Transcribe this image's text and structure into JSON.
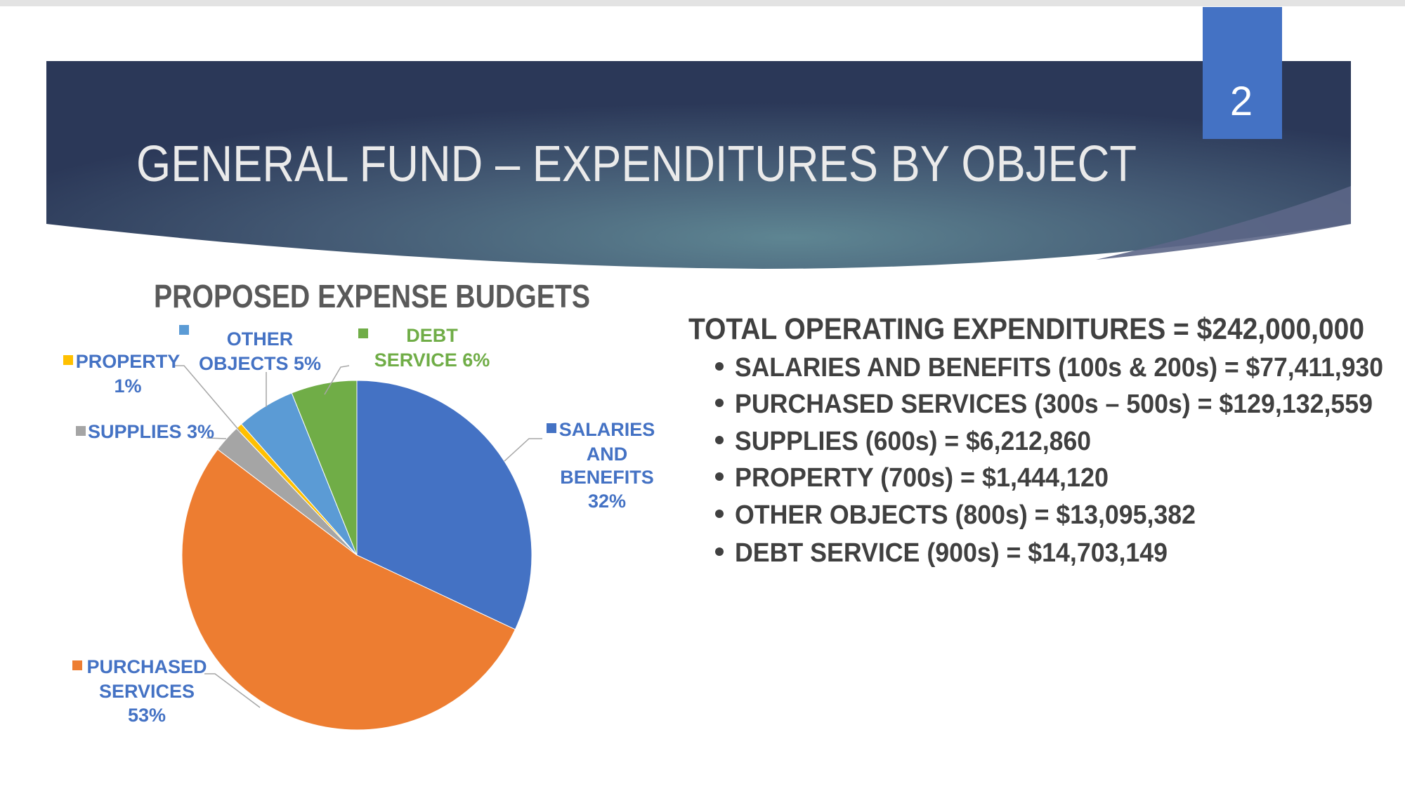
{
  "slide": {
    "title": "GENERAL FUND – EXPENDITURES BY OBJECT",
    "page_number": "2"
  },
  "colors": {
    "banner_dark": "#2b3858",
    "banner_light": "#5e8592",
    "page_box": "#4472C4",
    "label_blue": "#4472C4",
    "label_green": "#70AD47",
    "text_dark": "#404040"
  },
  "chart_data": {
    "type": "pie",
    "title": "PROPOSED EXPENSE BUDGETS",
    "categories": [
      "SALARIES AND BENEFITS",
      "PURCHASED SERVICES",
      "SUPPLIES",
      "PROPERTY",
      "OTHER OBJECTS",
      "DEBT SERVICE"
    ],
    "values": [
      77411930,
      129132559,
      6212860,
      1444120,
      13095382,
      14703149
    ],
    "percent_labels": [
      "32%",
      "53%",
      "3%",
      "1%",
      "5%",
      "6%"
    ],
    "colors": [
      "#4472C4",
      "#ED7D31",
      "#A5A5A5",
      "#FFC000",
      "#5B9BD5",
      "#70AD47"
    ],
    "start_angle": "12 o'clock, clockwise",
    "labels": {
      "salaries": [
        "SALARIES",
        "AND",
        "BENEFITS",
        "32%"
      ],
      "purchased": [
        "PURCHASED",
        "SERVICES",
        "53%"
      ],
      "supplies": [
        "SUPPLIES 3%"
      ],
      "property": [
        "PROPERTY",
        "1%"
      ],
      "other": [
        "OTHER",
        "OBJECTS 5%"
      ],
      "debt": [
        "DEBT",
        "SERVICE 6%"
      ]
    }
  },
  "summary": {
    "total": "TOTAL OPERATING EXPENDITURES = $242,000,000",
    "items": [
      "SALARIES AND BENEFITS (100s & 200s) = $77,411,930",
      "PURCHASED SERVICES (300s – 500s) = $129,132,559",
      "SUPPLIES (600s) = $6,212,860",
      "PROPERTY (700s) = $1,444,120",
      "OTHER OBJECTS (800s) = $13,095,382",
      "DEBT SERVICE (900s) = $14,703,149"
    ]
  }
}
